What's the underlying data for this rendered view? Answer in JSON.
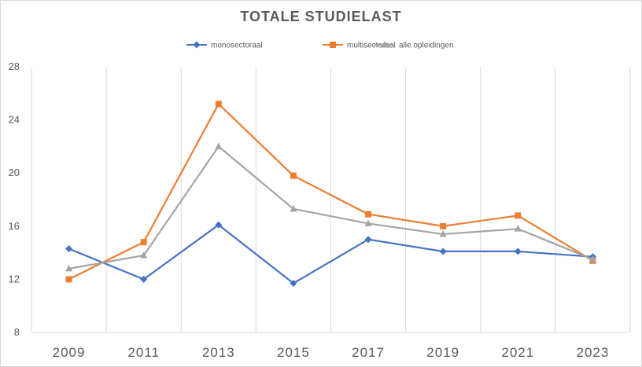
{
  "chart_data": {
    "type": "line",
    "title": "TOTALE STUDIELAST",
    "xlabel": "",
    "ylabel": "",
    "categories": [
      "2009",
      "2011",
      "2013",
      "2015",
      "2017",
      "2019",
      "2021",
      "2023"
    ],
    "ylim": [
      8,
      28
    ],
    "yticks": [
      8,
      12,
      16,
      20,
      24,
      28
    ],
    "grid": "vertical",
    "legend_position": "top",
    "series": [
      {
        "name": "monosectoraal",
        "color": "#4472c4",
        "marker": "diamond",
        "values": [
          14.3,
          12.0,
          16.1,
          11.7,
          15.0,
          14.1,
          14.1,
          13.7
        ]
      },
      {
        "name": "multisectoraal",
        "color": "#ed7d31",
        "marker": "square",
        "values": [
          12.0,
          14.8,
          25.2,
          19.8,
          16.9,
          16.0,
          16.8,
          13.4
        ]
      },
      {
        "name": "alle opleidingen",
        "color": "#a5a5a5",
        "marker": "triangle",
        "values": [
          12.8,
          13.8,
          22.0,
          17.3,
          16.2,
          15.4,
          15.8,
          13.5
        ]
      }
    ]
  }
}
